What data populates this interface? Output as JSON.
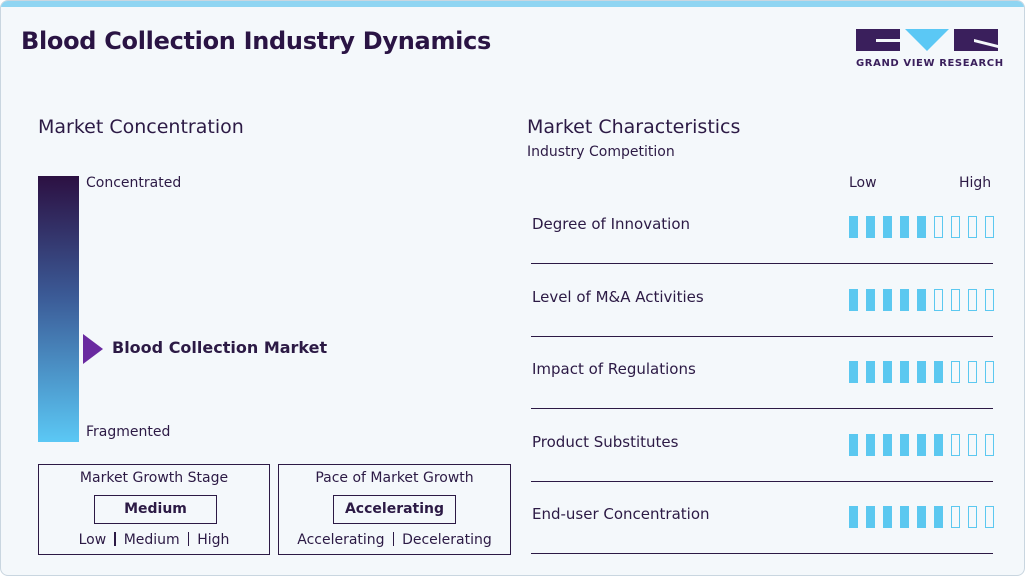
{
  "header": {
    "title": "Blood Collection Industry Dynamics",
    "brand": "GRAND VIEW RESEARCH"
  },
  "market_concentration": {
    "title": "Market Concentration",
    "top_label": "Concentrated",
    "bottom_label": "Fragmented",
    "marker_label": "Blood Collection Market",
    "level": 0.35
  },
  "growth_stage": {
    "title": "Market Growth Stage",
    "selected": "Medium",
    "options": [
      "Low",
      "Medium",
      "High"
    ]
  },
  "growth_pace": {
    "title": "Pace of Market Growth",
    "selected": "Accelerating",
    "options": [
      "Accelerating",
      "Decelerating"
    ]
  },
  "market_characteristics": {
    "title": "Market Characteristics",
    "subtitle": "Industry Competition",
    "low_label": "Low",
    "high_label": "High",
    "scale_max": 9,
    "rows": [
      {
        "label": "Degree of Innovation",
        "rating": 5
      },
      {
        "label": "Level of M&A Activities",
        "rating": 5
      },
      {
        "label": "Impact of Regulations",
        "rating": 6
      },
      {
        "label": "Product Substitutes",
        "rating": 6
      },
      {
        "label": "End-user Concentration",
        "rating": 6
      }
    ]
  }
}
